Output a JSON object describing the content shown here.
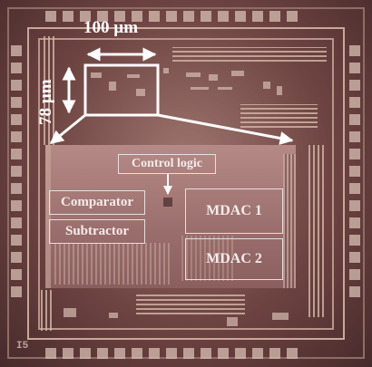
{
  "image": {
    "dimensions": {
      "width_label": "100 µm",
      "height_label": "78 µm"
    },
    "blocks": {
      "control_logic": "Control logic",
      "comparator": "Comparator",
      "subtractor": "Subtractor",
      "mdac1": "MDAC 1",
      "mdac2": "MDAC 2"
    },
    "die_marking": "I5"
  },
  "colors": {
    "annotation": "#ffffff",
    "box_outline": "#e8dede"
  }
}
